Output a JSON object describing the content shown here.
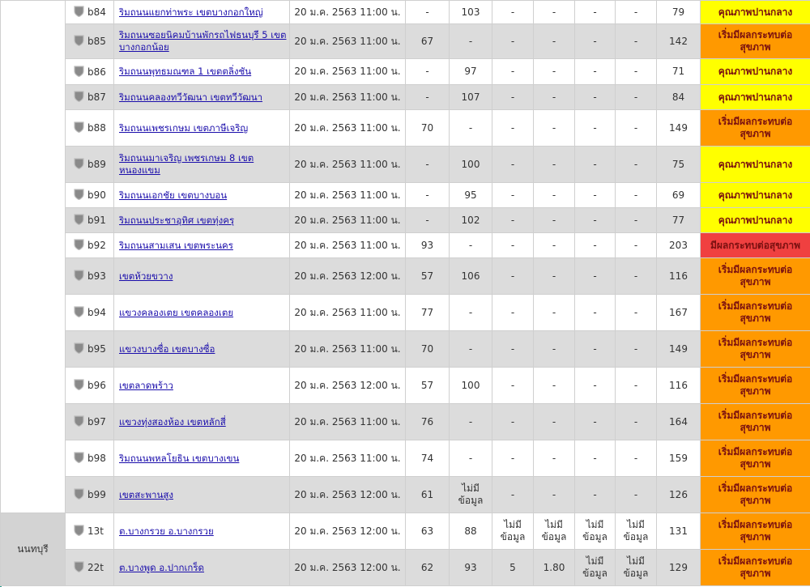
{
  "colors": {
    "moderate": "#ffff00",
    "warning": "#ff9900",
    "unhealthy": "#f04040"
  },
  "status_labels": {
    "moderate": "คุณภาพปานกลาง",
    "warning": "เริ่มมีผลกระทบต่อสุขภาพ",
    "unhealthy": "มีผลกระทบต่อสุขภาพ"
  },
  "regions": [
    {
      "name": "",
      "rows": 16
    },
    {
      "name": "นนทบุรี",
      "rows": 2
    }
  ],
  "icon": "shield-icon",
  "rows": [
    {
      "id": "b84",
      "location": "ริมถนนแยกท่าพระ เขตบางกอกใหญ่",
      "date": "20 ม.ค. 2563 11:00 น.",
      "values": [
        "-",
        "103",
        "-",
        "-",
        "-",
        "-"
      ],
      "aqi": "79",
      "level": "moderate"
    },
    {
      "id": "b85",
      "location": "ริมถนนซอยนิคมบ้านพักรถไฟธนบุรี 5 เขตบางกอกน้อย",
      "date": "20 ม.ค. 2563 11:00 น.",
      "values": [
        "67",
        "-",
        "-",
        "-",
        "-",
        "-"
      ],
      "aqi": "142",
      "level": "warning"
    },
    {
      "id": "b86",
      "location": "ริมถนนพุทธมณฑล 1 เขตตลิ่งชัน",
      "date": "20 ม.ค. 2563 11:00 น.",
      "values": [
        "-",
        "97",
        "-",
        "-",
        "-",
        "-"
      ],
      "aqi": "71",
      "level": "moderate"
    },
    {
      "id": "b87",
      "location": "ริมถนนคลองทวีวัฒนา เขตทวีวัฒนา",
      "date": "20 ม.ค. 2563 11:00 น.",
      "values": [
        "-",
        "107",
        "-",
        "-",
        "-",
        "-"
      ],
      "aqi": "84",
      "level": "moderate"
    },
    {
      "id": "b88",
      "location": "ริมถนนเพชรเกษม เขตภาษีเจริญ",
      "date": "20 ม.ค. 2563 11:00 น.",
      "values": [
        "70",
        "-",
        "-",
        "-",
        "-",
        "-"
      ],
      "aqi": "149",
      "level": "warning"
    },
    {
      "id": "b89",
      "location": "ริมถนนมาเจริญ เพชรเกษม 8 เขตหนองแขม",
      "date": "20 ม.ค. 2563 11:00 น.",
      "values": [
        "-",
        "100",
        "-",
        "-",
        "-",
        "-"
      ],
      "aqi": "75",
      "level": "moderate"
    },
    {
      "id": "b90",
      "location": "ริมถนนเอกชัย เขตบางบอน",
      "date": "20 ม.ค. 2563 11:00 น.",
      "values": [
        "-",
        "95",
        "-",
        "-",
        "-",
        "-"
      ],
      "aqi": "69",
      "level": "moderate"
    },
    {
      "id": "b91",
      "location": "ริมถนนประชาอุทิศ เขตทุ่งครุ",
      "date": "20 ม.ค. 2563 11:00 น.",
      "values": [
        "-",
        "102",
        "-",
        "-",
        "-",
        "-"
      ],
      "aqi": "77",
      "level": "moderate"
    },
    {
      "id": "b92",
      "location": "ริมถนนสามเสน เขตพระนคร",
      "date": "20 ม.ค. 2563 11:00 น.",
      "values": [
        "93",
        "-",
        "-",
        "-",
        "-",
        "-"
      ],
      "aqi": "203",
      "level": "unhealthy"
    },
    {
      "id": "b93",
      "location": "เขตห้วยขวาง",
      "date": "20 ม.ค. 2563 12:00 น.",
      "values": [
        "57",
        "106",
        "-",
        "-",
        "-",
        "-"
      ],
      "aqi": "116",
      "level": "warning"
    },
    {
      "id": "b94",
      "location": "แขวงคลองเตย เขตคลองเตย",
      "date": "20 ม.ค. 2563 11:00 น.",
      "values": [
        "77",
        "-",
        "-",
        "-",
        "-",
        "-"
      ],
      "aqi": "167",
      "level": "warning"
    },
    {
      "id": "b95",
      "location": "แขวงบางซื่อ เขตบางซื่อ",
      "date": "20 ม.ค. 2563 11:00 น.",
      "values": [
        "70",
        "-",
        "-",
        "-",
        "-",
        "-"
      ],
      "aqi": "149",
      "level": "warning"
    },
    {
      "id": "b96",
      "location": "เขตลาดพร้าว",
      "date": "20 ม.ค. 2563 12:00 น.",
      "values": [
        "57",
        "100",
        "-",
        "-",
        "-",
        "-"
      ],
      "aqi": "116",
      "level": "warning"
    },
    {
      "id": "b97",
      "location": "แขวงทุ่งสองห้อง เขตหลักสี่",
      "date": "20 ม.ค. 2563 11:00 น.",
      "values": [
        "76",
        "-",
        "-",
        "-",
        "-",
        "-"
      ],
      "aqi": "164",
      "level": "warning"
    },
    {
      "id": "b98",
      "location": "ริมถนนพหลโยธิน เขตบางเขน",
      "date": "20 ม.ค. 2563 11:00 น.",
      "values": [
        "74",
        "-",
        "-",
        "-",
        "-",
        "-"
      ],
      "aqi": "159",
      "level": "warning"
    },
    {
      "id": "b99",
      "location": "เขตสะพานสูง",
      "date": "20 ม.ค. 2563 12:00 น.",
      "values": [
        "61",
        "ไม่มีข้อมูล",
        "-",
        "-",
        "-",
        "-"
      ],
      "aqi": "126",
      "level": "warning"
    },
    {
      "id": "13t",
      "location": "ต.บางกรวย อ.บางกรวย",
      "date": "20 ม.ค. 2563 12:00 น.",
      "values": [
        "63",
        "88",
        "ไม่มีข้อมูล",
        "ไม่มีข้อมูล",
        "ไม่มีข้อมูล",
        "ไม่มีข้อมูล"
      ],
      "aqi": "131",
      "level": "warning"
    },
    {
      "id": "22t",
      "location": "ต.บางพูด อ.ปากเกร็ด",
      "date": "20 ม.ค. 2563 12:00 น.",
      "values": [
        "62",
        "93",
        "5",
        "1.80",
        "ไม่มีข้อมูล",
        "ไม่มีข้อมูล"
      ],
      "aqi": "129",
      "level": "warning"
    }
  ]
}
